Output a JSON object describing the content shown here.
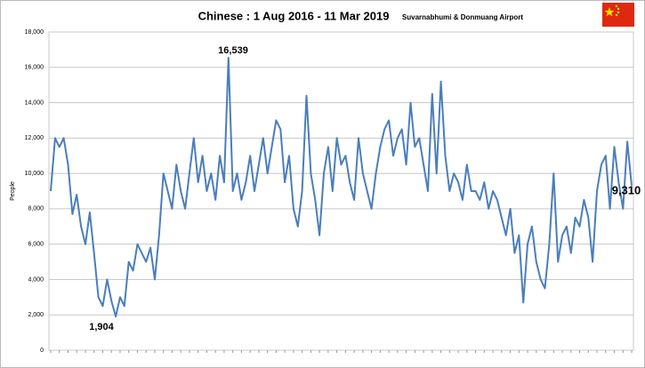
{
  "chart_data": {
    "type": "line",
    "title": "Chinese : 1 Aug 2016 - 11 Mar 2019",
    "subtitle": "Suvarnabhumi & Donmuang Airport",
    "y_label": "People",
    "annotations": [
      "16,539",
      "1,904",
      "9,310"
    ],
    "ylim": [
      0,
      18000
    ],
    "yticks": [
      0,
      {
        "value": 2000,
        "label": "2,000"
      },
      {
        "value": 4000,
        "label": "4,000"
      },
      {
        "value": 6000,
        "label": "6,000"
      },
      {
        "value": 8000,
        "label": "8,000"
      },
      {
        "value": 10000,
        "label": "10,000"
      },
      {
        "value": 12000,
        "label": "12,000"
      },
      {
        "value": 14000,
        "label": "14,000"
      },
      {
        "value": 16000,
        "label": "16,000"
      },
      {
        "value": 18000,
        "label": "18,000"
      }
    ],
    "grid": true,
    "color": "#4a7ebb",
    "values": [
      9000,
      12000,
      11500,
      12000,
      10500,
      7700,
      8800,
      7000,
      6000,
      7800,
      5500,
      3000,
      2500,
      4000,
      2800,
      1904,
      3000,
      2500,
      5000,
      4500,
      6000,
      5500,
      5000,
      5800,
      4000,
      6500,
      10000,
      9000,
      8000,
      10500,
      9000,
      8000,
      10000,
      12000,
      9500,
      11000,
      9000,
      10000,
      8500,
      11000,
      9500,
      16539,
      9000,
      10000,
      8500,
      9500,
      11000,
      9000,
      10500,
      12000,
      10000,
      11500,
      13000,
      12500,
      9500,
      11000,
      8000,
      7000,
      9000,
      14400,
      10000,
      8500,
      6500,
      10000,
      11500,
      9000,
      12000,
      10500,
      11000,
      9500,
      8500,
      12000,
      10000,
      9000,
      8000,
      10000,
      11500,
      12500,
      13000,
      11000,
      12000,
      12500,
      10500,
      14000,
      11500,
      12000,
      10500,
      9000,
      14500,
      10000,
      15200,
      11000,
      9000,
      10000,
      9500,
      8500,
      10500,
      9000,
      9000,
      8500,
      9500,
      8000,
      9000,
      8500,
      7500,
      6500,
      8000,
      5500,
      6500,
      2700,
      6000,
      7000,
      5000,
      4000,
      3500,
      6000,
      10000,
      5000,
      6500,
      7000,
      5500,
      7500,
      7000,
      8500,
      7500,
      5000,
      9000,
      10500,
      11000,
      8000,
      11500,
      9500,
      8000,
      11800,
      9310
    ]
  }
}
